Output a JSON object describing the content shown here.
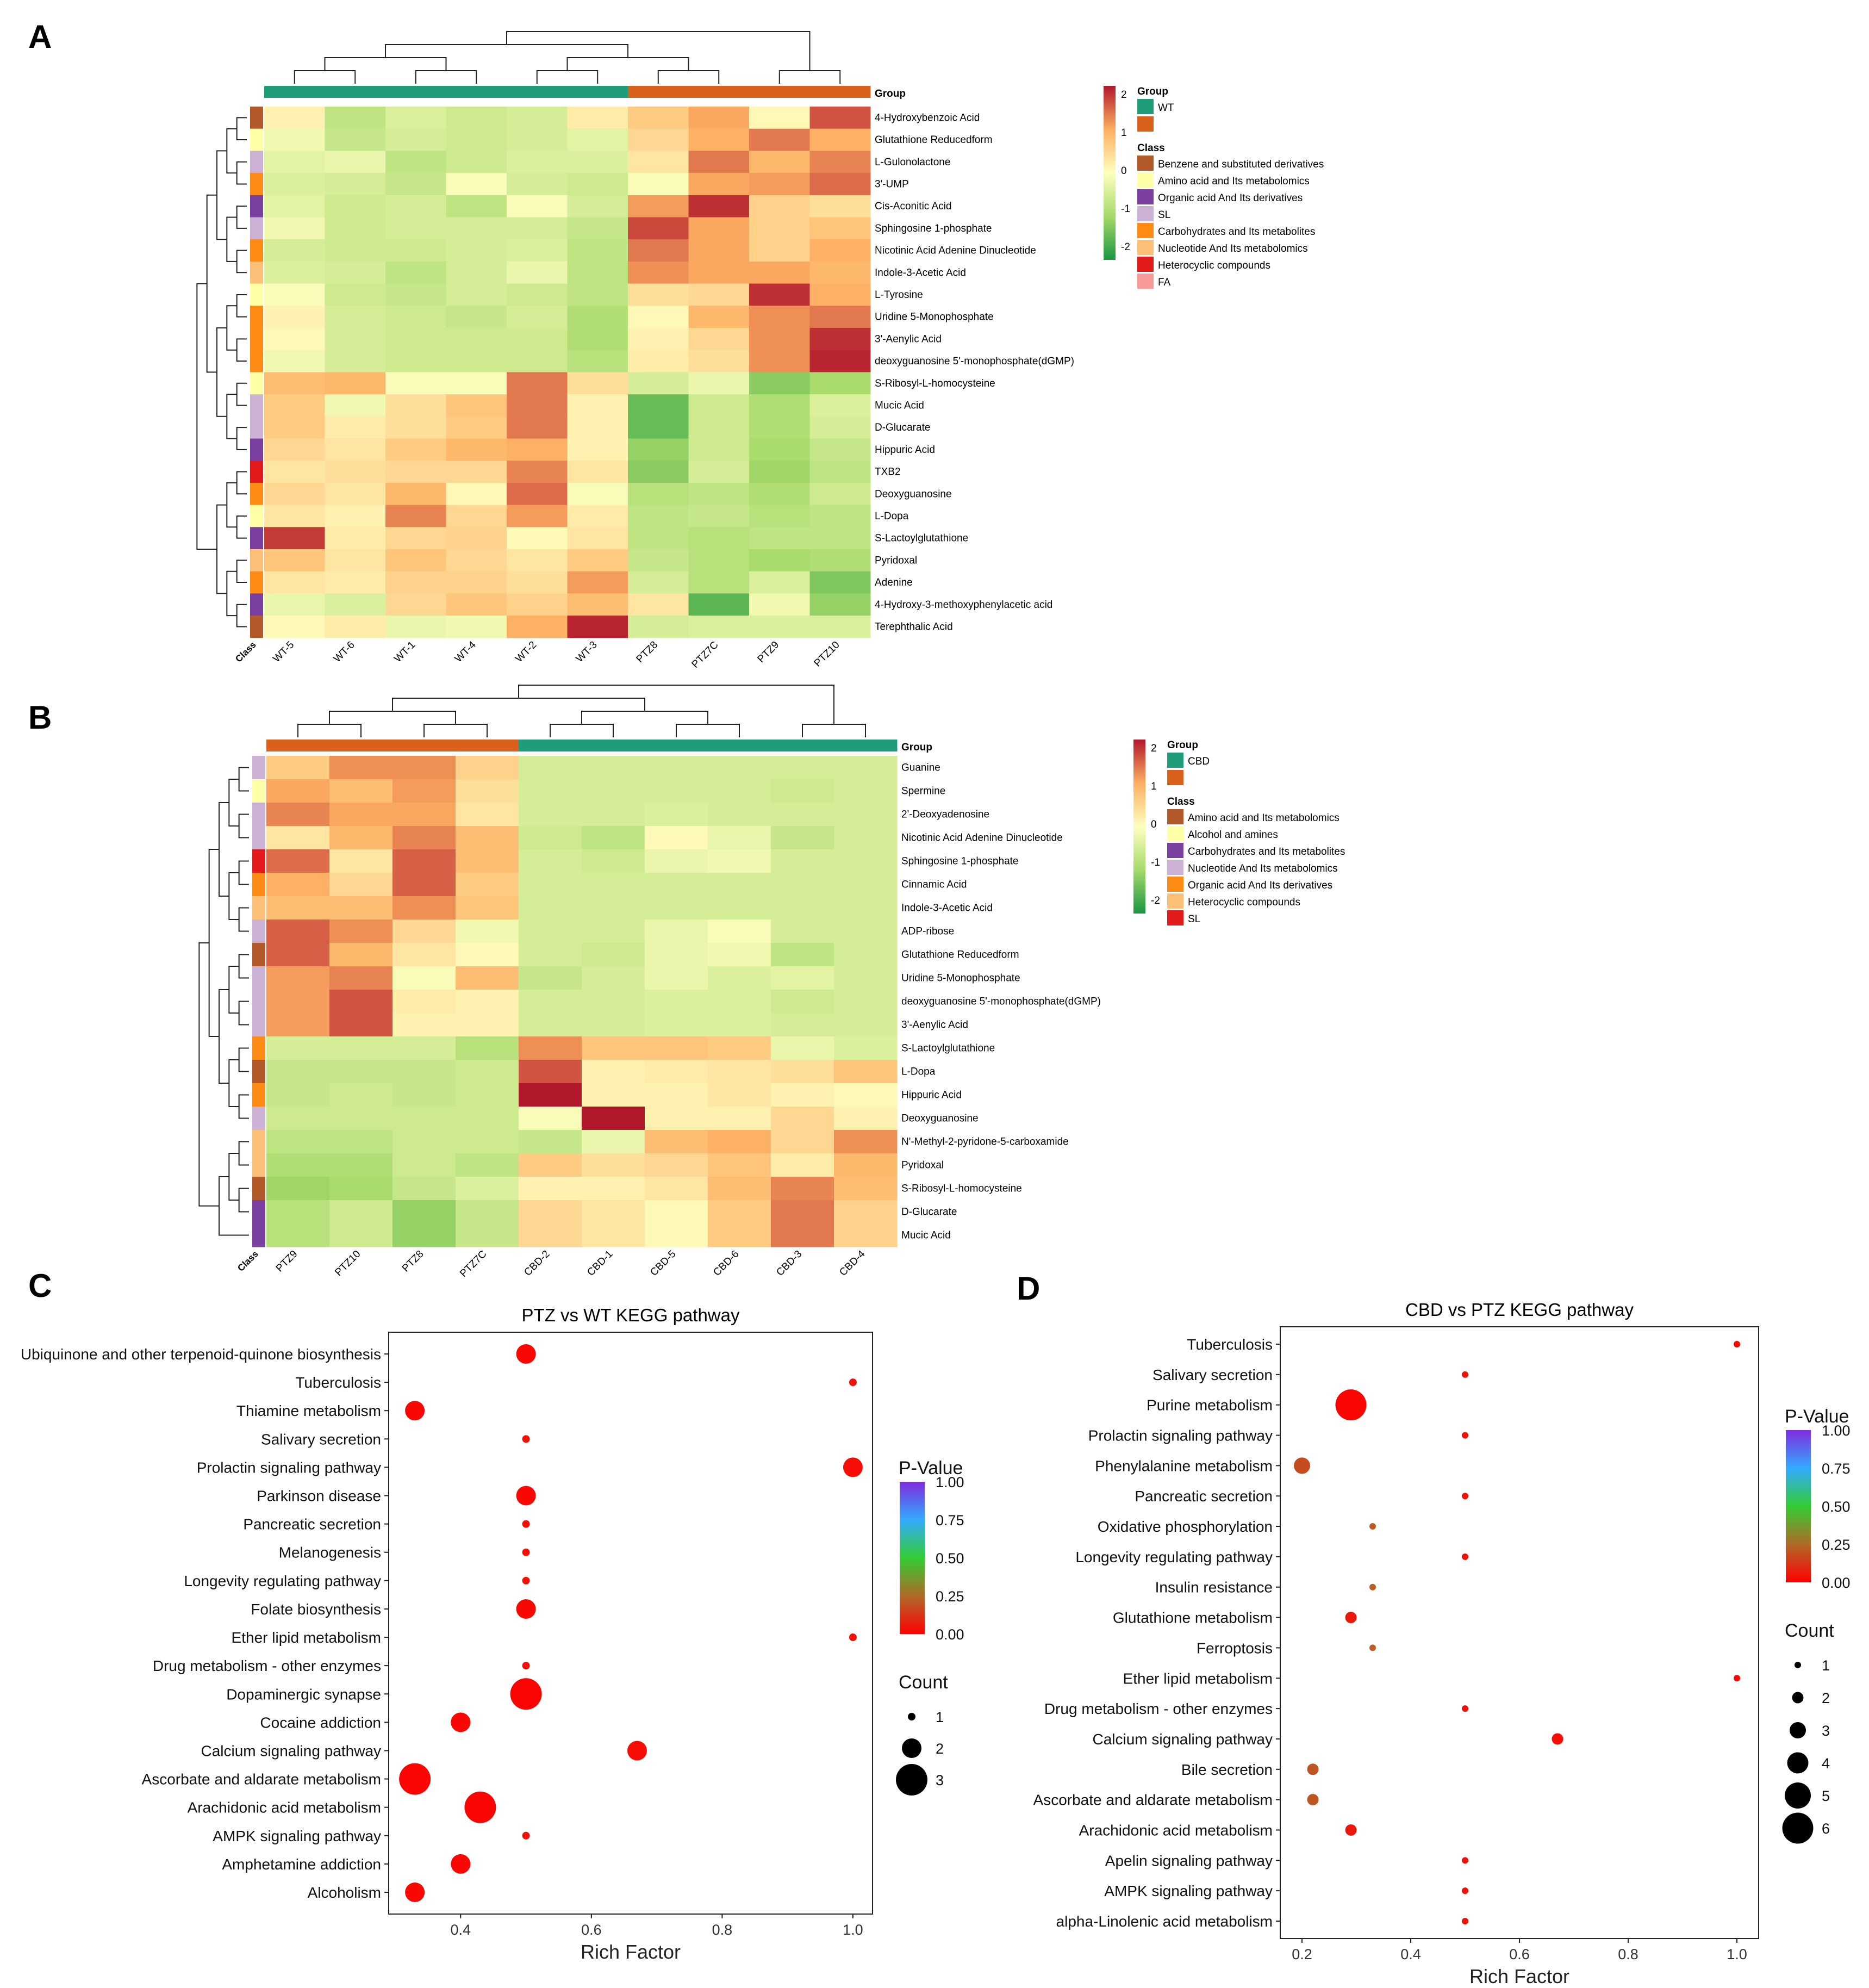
{
  "panels": {
    "a": "A",
    "b": "B",
    "c": "C",
    "d": "D"
  },
  "colors": {
    "wt": "#1f9c7a",
    "ptz": "#d9611c",
    "cbd": "#1f9c7a",
    "heat_neg": "#1a9641",
    "heat_mid": "#ffffbf",
    "heat_pos": "#b2182b"
  },
  "chart_data": [
    {
      "type": "heatmap",
      "id": "A",
      "group_label": "Group",
      "class_label": "Class",
      "columns": [
        "WT-5",
        "WT-6",
        "WT-1",
        "WT-4",
        "WT-2",
        "WT-3",
        "PTZ8",
        "PTZ7C",
        "PTZ9",
        "PTZ10"
      ],
      "column_groups": [
        "WT",
        "WT",
        "WT",
        "WT",
        "WT",
        "WT",
        "PTZ",
        "PTZ",
        "PTZ",
        "PTZ"
      ],
      "rows": [
        "4-Hydroxybenzoic Acid",
        "Glutathione Reducedform",
        "L-Gulonolactone",
        "3'-UMP",
        "Cis-Aconitic Acid",
        "Sphingosine 1-phosphate",
        "Nicotinic Acid Adenine Dinucleotide",
        "Indole-3-Acetic Acid",
        "L-Tyrosine",
        "Uridine 5-Monophosphate",
        "3'-Aenylic Acid",
        "deoxyguanosine 5'-monophosphate(dGMP)",
        "S-Ribosyl-L-homocysteine",
        "Mucic Acid",
        "D-Glucarate",
        "Hippuric Acid",
        "TXB2",
        "Deoxyguanosine",
        "L-Dopa",
        "S-Lactoylglutathione",
        "Pyridoxal",
        "Adenine",
        "4-Hydroxy-3-methoxyphenylacetic acid",
        "Terephthalic Acid"
      ],
      "row_class": [
        0,
        1,
        3,
        4,
        2,
        3,
        4,
        5,
        1,
        4,
        4,
        4,
        1,
        3,
        3,
        2,
        6,
        4,
        1,
        2,
        5,
        4,
        2,
        0
      ],
      "values": [
        [
          0.2,
          -0.9,
          -0.5,
          -0.7,
          -0.6,
          0.3,
          0.8,
          1.3,
          0.1,
          2.0
        ],
        [
          -0.2,
          -0.8,
          -0.6,
          -0.7,
          -0.6,
          -0.4,
          0.6,
          1.2,
          1.7,
          1.2
        ],
        [
          -0.4,
          -0.3,
          -0.9,
          -0.7,
          -0.5,
          -0.5,
          0.4,
          1.7,
          1.1,
          1.6
        ],
        [
          -0.5,
          -0.6,
          -0.8,
          -0.1,
          -0.6,
          -0.7,
          -0.1,
          1.3,
          1.4,
          1.8
        ],
        [
          -0.4,
          -0.7,
          -0.6,
          -0.9,
          -0.1,
          -0.6,
          1.4,
          2.3,
          0.7,
          0.5
        ],
        [
          -0.2,
          -0.7,
          -0.6,
          -0.6,
          -0.6,
          -0.8,
          2.1,
          1.3,
          0.7,
          0.9
        ],
        [
          -0.6,
          -0.7,
          -0.7,
          -0.6,
          -0.5,
          -0.9,
          1.7,
          1.3,
          0.7,
          1.2
        ],
        [
          -0.5,
          -0.6,
          -0.9,
          -0.6,
          -0.3,
          -0.9,
          1.5,
          1.3,
          1.3,
          1.1
        ],
        [
          -0.1,
          -0.7,
          -0.8,
          -0.6,
          -0.7,
          -0.9,
          0.5,
          0.6,
          2.3,
          1.2
        ],
        [
          0.2,
          -0.6,
          -0.7,
          -0.8,
          -0.6,
          -1.1,
          0.1,
          1.1,
          1.5,
          1.7
        ],
        [
          0.1,
          -0.6,
          -0.7,
          -0.7,
          -0.7,
          -1.1,
          0.2,
          0.6,
          1.5,
          2.3
        ],
        [
          -0.2,
          -0.6,
          -0.7,
          -0.7,
          -0.7,
          -1.0,
          0.3,
          0.5,
          1.5,
          2.4
        ],
        [
          1.0,
          1.1,
          -0.1,
          -0.1,
          1.7,
          0.5,
          -0.6,
          -0.3,
          -1.5,
          -1.2
        ],
        [
          0.8,
          -0.2,
          0.5,
          0.9,
          1.7,
          0.2,
          -1.8,
          -0.7,
          -1.1,
          -0.5
        ],
        [
          0.8,
          0.3,
          0.5,
          0.8,
          1.7,
          0.2,
          -1.8,
          -0.7,
          -1.1,
          -0.6
        ],
        [
          0.6,
          0.4,
          0.8,
          1.1,
          1.2,
          0.2,
          -1.4,
          -0.7,
          -1.2,
          -0.8
        ],
        [
          0.4,
          0.5,
          0.6,
          0.6,
          1.6,
          0.4,
          -1.5,
          -0.6,
          -1.3,
          -0.9
        ],
        [
          0.6,
          0.4,
          1.1,
          0.1,
          1.8,
          -0.1,
          -1.0,
          -0.9,
          -1.1,
          -0.7
        ],
        [
          0.4,
          0.2,
          1.6,
          0.6,
          1.4,
          0.3,
          -0.9,
          -0.8,
          -1.0,
          -0.9
        ],
        [
          2.2,
          0.3,
          0.6,
          0.7,
          0.1,
          0.4,
          -0.9,
          -1.0,
          -0.9,
          -0.9
        ],
        [
          0.9,
          0.4,
          0.9,
          0.6,
          0.4,
          0.8,
          -0.8,
          -1.0,
          -1.2,
          -1.1
        ],
        [
          0.4,
          0.3,
          0.7,
          0.7,
          0.5,
          1.4,
          -0.6,
          -1.0,
          -0.5,
          -1.6
        ],
        [
          -0.3,
          -0.5,
          0.6,
          0.9,
          0.7,
          1.0,
          0.4,
          -1.9,
          -0.2,
          -1.4
        ],
        [
          0.1,
          0.3,
          -0.3,
          -0.2,
          1.2,
          2.4,
          -0.6,
          -0.5,
          -0.5,
          -0.5
        ]
      ],
      "legend": {
        "scale_ticks": [
          "2",
          "1",
          "0",
          "-1",
          "-2"
        ],
        "group_title": "Group",
        "groups": [
          {
            "name": "WT",
            "color": "#1f9c7a"
          },
          {
            "name": "",
            "color": "#d9611c"
          }
        ],
        "class_title": "Class",
        "classes": [
          {
            "name": "Benzene and substituted derivatives",
            "color": "#b35a2a"
          },
          {
            "name": "Amino acid and Its metabolomics",
            "color": "#ffffa8"
          },
          {
            "name": "Organic acid And Its derivatives",
            "color": "#7b3fa0"
          },
          {
            "name": "SL",
            "color": "#ccb3d6"
          },
          {
            "name": "Carbohydrates and Its metabolites",
            "color": "#ff8b17"
          },
          {
            "name": "Nucleotide And Its metabolomics",
            "color": "#fcc078"
          },
          {
            "name": "Heterocyclic compounds",
            "color": "#e31a1c"
          },
          {
            "name": "FA",
            "color": "#f99a9a"
          }
        ]
      }
    },
    {
      "type": "heatmap",
      "id": "B",
      "group_label": "Group",
      "class_label": "Class",
      "columns": [
        "PTZ9",
        "PTZ10",
        "PTZ8",
        "PTZ7C",
        "CBD-2",
        "CBD-1",
        "CBD-5",
        "CBD-6",
        "CBD-3",
        "CBD-4"
      ],
      "column_groups": [
        "PTZ",
        "PTZ",
        "PTZ",
        "PTZ",
        "CBD",
        "CBD",
        "CBD",
        "CBD",
        "CBD",
        "CBD"
      ],
      "rows": [
        "Guanine",
        "Spermine",
        "2'-Deoxyadenosine",
        "Nicotinic Acid Adenine Dinucleotide",
        "Sphingosine 1-phosphate",
        "Cinnamic Acid",
        "Indole-3-Acetic Acid",
        "ADP-ribose",
        "Glutathione Reducedform",
        "Uridine 5-Monophosphate",
        "deoxyguanosine 5'-monophosphate(dGMP)",
        "3'-Aenylic Acid",
        "S-Lactoylglutathione",
        "L-Dopa",
        "Hippuric Acid",
        "Deoxyguanosine",
        "N'-Methyl-2-pyridone-5-carboxamide",
        "Pyridoxal",
        "S-Ribosyl-L-homocysteine",
        "D-Glucarate",
        "Mucic Acid"
      ],
      "row_class": [
        3,
        1,
        3,
        3,
        6,
        4,
        5,
        3,
        0,
        3,
        3,
        3,
        4,
        0,
        4,
        3,
        5,
        5,
        0,
        2,
        2
      ],
      "values": [
        [
          0.8,
          1.5,
          1.5,
          0.7,
          -0.6,
          -0.6,
          -0.6,
          -0.6,
          -0.6,
          -0.6
        ],
        [
          1.3,
          1.0,
          1.4,
          0.5,
          -0.6,
          -0.6,
          -0.6,
          -0.6,
          -0.7,
          -0.6
        ],
        [
          1.6,
          1.3,
          1.3,
          0.4,
          -0.6,
          -0.6,
          -0.5,
          -0.6,
          -0.6,
          -0.6
        ],
        [
          0.4,
          1.1,
          1.6,
          1.0,
          -0.7,
          -0.9,
          0.1,
          -0.3,
          -0.8,
          -0.6
        ],
        [
          1.8,
          0.4,
          1.9,
          1.0,
          -0.6,
          -0.7,
          -0.3,
          -0.2,
          -0.6,
          -0.6
        ],
        [
          1.2,
          0.6,
          1.9,
          0.8,
          -0.6,
          -0.6,
          -0.6,
          -0.6,
          -0.6,
          -0.6
        ],
        [
          1.0,
          1.0,
          1.5,
          0.9,
          -0.6,
          -0.6,
          -0.6,
          -0.6,
          -0.6,
          -0.6
        ],
        [
          1.9,
          1.5,
          0.6,
          -0.2,
          -0.6,
          -0.6,
          -0.3,
          -0.1,
          -0.6,
          -0.6
        ],
        [
          1.9,
          1.1,
          0.4,
          0.1,
          -0.6,
          -0.7,
          -0.3,
          -0.2,
          -0.9,
          -0.6
        ],
        [
          1.4,
          1.6,
          -0.1,
          1.0,
          -0.8,
          -0.6,
          -0.3,
          -0.5,
          -0.4,
          -0.6
        ],
        [
          1.4,
          2.0,
          0.3,
          0.2,
          -0.6,
          -0.6,
          -0.5,
          -0.5,
          -0.7,
          -0.6
        ],
        [
          1.4,
          2.0,
          0.2,
          0.2,
          -0.6,
          -0.6,
          -0.5,
          -0.5,
          -0.6,
          -0.6
        ],
        [
          -0.6,
          -0.6,
          -0.6,
          -1.0,
          1.5,
          0.9,
          0.9,
          0.8,
          -0.3,
          -0.5
        ],
        [
          -0.8,
          -0.8,
          -0.8,
          -0.7,
          2.0,
          0.2,
          0.3,
          0.4,
          0.5,
          0.9
        ],
        [
          -0.8,
          -0.7,
          -0.8,
          -0.7,
          2.5,
          0.2,
          0.2,
          0.4,
          0.2,
          0.1
        ],
        [
          -0.7,
          -0.7,
          -0.7,
          -0.7,
          -0.1,
          2.5,
          0.2,
          0.2,
          0.6,
          0.2
        ],
        [
          -0.9,
          -0.9,
          -0.7,
          -0.7,
          -0.8,
          -0.3,
          1.0,
          1.2,
          0.6,
          1.5
        ],
        [
          -1.1,
          -1.1,
          -0.7,
          -0.9,
          0.8,
          0.5,
          0.6,
          0.9,
          0.3,
          1.1
        ],
        [
          -1.3,
          -1.2,
          -0.8,
          -0.5,
          0.2,
          0.2,
          0.4,
          1.0,
          1.6,
          1.0
        ],
        [
          -1.0,
          -0.7,
          -1.4,
          -0.8,
          0.6,
          0.4,
          0.1,
          0.8,
          1.7,
          0.7
        ],
        [
          -1.0,
          -0.7,
          -1.4,
          -0.8,
          0.6,
          0.4,
          0.1,
          0.8,
          1.7,
          0.7
        ]
      ],
      "legend": {
        "scale_ticks": [
          "2",
          "1",
          "0",
          "-1",
          "-2"
        ],
        "group_title": "Group",
        "groups": [
          {
            "name": "CBD",
            "color": "#1f9c7a"
          },
          {
            "name": "",
            "color": "#d9611c"
          }
        ],
        "class_title": "Class",
        "classes": [
          {
            "name": "Amino acid and Its metabolomics",
            "color": "#b35a2a"
          },
          {
            "name": "Alcohol and amines",
            "color": "#ffffa8"
          },
          {
            "name": "Carbohydrates and Its metabolites",
            "color": "#7b3fa0"
          },
          {
            "name": "Nucleotide And Its metabolomics",
            "color": "#ccb3d6"
          },
          {
            "name": "Organic acid And Its derivatives",
            "color": "#ff8b17"
          },
          {
            "name": "Heterocyclic compounds",
            "color": "#fcc078"
          },
          {
            "name": "SL",
            "color": "#e31a1c"
          }
        ]
      }
    },
    {
      "type": "scatter",
      "id": "C",
      "title": "PTZ vs WT KEGG pathway",
      "xlabel": "Rich Factor",
      "xlim": [
        0.29,
        1.03
      ],
      "xticks": [
        0.4,
        0.6,
        0.8,
        1.0
      ],
      "xtick_labels": [
        "0.4",
        "0.6",
        "0.8",
        "1.0"
      ],
      "pathways": [
        "Ubiquinone and other terpenoid-quinone biosynthesis",
        "Tuberculosis",
        "Thiamine metabolism",
        "Salivary secretion",
        "Prolactin signaling pathway",
        "Parkinson disease",
        "Pancreatic secretion",
        "Melanogenesis",
        "Longevity regulating pathway",
        "Folate biosynthesis",
        "Ether lipid metabolism",
        "Drug metabolism - other enzymes",
        "Dopaminergic synapse",
        "Cocaine addiction",
        "Calcium signaling pathway",
        "Ascorbate and aldarate metabolism",
        "Arachidonic acid metabolism",
        "AMPK signaling pathway",
        "Amphetamine addiction",
        "Alcoholism"
      ],
      "rich_factor": [
        0.5,
        1.0,
        0.33,
        0.5,
        1.0,
        0.5,
        0.5,
        0.5,
        0.5,
        0.5,
        1.0,
        0.5,
        0.5,
        0.4,
        0.67,
        0.33,
        0.43,
        0.5,
        0.4,
        0.33
      ],
      "count": [
        2,
        1,
        2,
        1,
        2,
        2,
        1,
        1,
        1,
        2,
        1,
        1,
        3,
        2,
        2,
        3,
        3,
        1,
        2,
        2
      ],
      "p_value": [
        0.02,
        0.04,
        0.02,
        0.04,
        0.03,
        0.02,
        0.04,
        0.04,
        0.04,
        0.02,
        0.04,
        0.04,
        0.01,
        0.02,
        0.03,
        0.01,
        0.01,
        0.04,
        0.02,
        0.02
      ],
      "colorbar_title": "P-Value",
      "colorbar_ticks": [
        "1.00",
        "0.75",
        "0.50",
        "0.25",
        "0.00"
      ],
      "size_title": "Count",
      "size_ticks": [
        "1",
        "2",
        "3"
      ]
    },
    {
      "type": "scatter",
      "id": "D",
      "title": "CBD vs PTZ KEGG pathway",
      "xlabel": "Rich Factor",
      "xlim": [
        0.16,
        1.04
      ],
      "xticks": [
        0.2,
        0.4,
        0.6,
        0.8,
        1.0
      ],
      "xtick_labels": [
        "0.2",
        "0.4",
        "0.6",
        "0.8",
        "1.0"
      ],
      "pathways": [
        "Tuberculosis",
        "Salivary secretion",
        "Purine metabolism",
        "Prolactin signaling pathway",
        "Phenylalanine metabolism",
        "Pancreatic secretion",
        "Oxidative phosphorylation",
        "Longevity regulating pathway",
        "Insulin resistance",
        "Glutathione metabolism",
        "Ferroptosis",
        "Ether lipid metabolism",
        "Drug metabolism - other enzymes",
        "Calcium signaling pathway",
        "Bile secretion",
        "Ascorbate and aldarate metabolism",
        "Arachidonic acid metabolism",
        "Apelin signaling pathway",
        "AMPK signaling pathway",
        "alpha-Linolenic acid metabolism"
      ],
      "rich_factor": [
        1.0,
        0.5,
        0.29,
        0.5,
        0.2,
        0.5,
        0.33,
        0.5,
        0.33,
        0.29,
        0.33,
        1.0,
        0.5,
        0.67,
        0.22,
        0.22,
        0.29,
        0.5,
        0.5,
        0.5
      ],
      "count": [
        1,
        1,
        6,
        1,
        3,
        1,
        1,
        1,
        1,
        2,
        1,
        1,
        1,
        2,
        2,
        2,
        2,
        1,
        1,
        1
      ],
      "p_value": [
        0.02,
        0.04,
        0.01,
        0.04,
        0.18,
        0.04,
        0.22,
        0.04,
        0.22,
        0.06,
        0.22,
        0.02,
        0.04,
        0.03,
        0.2,
        0.2,
        0.06,
        0.04,
        0.04,
        0.04
      ],
      "colorbar_title": "P-Value",
      "colorbar_ticks": [
        "1.00",
        "0.75",
        "0.50",
        "0.25",
        "0.00"
      ],
      "size_title": "Count",
      "size_ticks": [
        "1",
        "2",
        "3",
        "4",
        "5",
        "6"
      ]
    }
  ]
}
